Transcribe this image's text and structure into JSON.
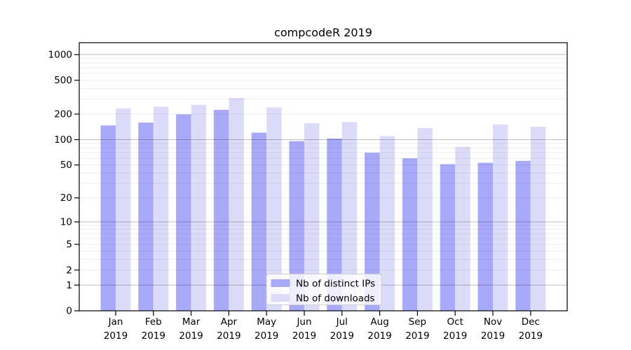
{
  "title": "compcodeR 2019",
  "chart_data": {
    "type": "bar",
    "title": "compcodeR 2019",
    "categories": [
      "Jan 2019",
      "Feb 2019",
      "Mar 2019",
      "Apr 2019",
      "May 2019",
      "Jun 2019",
      "Jul 2019",
      "Aug 2019",
      "Sep 2019",
      "Oct 2019",
      "Nov 2019",
      "Dec 2019"
    ],
    "series": [
      {
        "name": "Nb of distinct IPs",
        "color": "#a9a9fa",
        "values": [
          147,
          159,
          199,
          224,
          121,
          96,
          103,
          70,
          60,
          51,
          53,
          56
        ]
      },
      {
        "name": "Nb of downloads",
        "color": "#dcdcfa",
        "values": [
          233,
          244,
          257,
          309,
          240,
          156,
          161,
          110,
          137,
          82,
          151,
          142
        ]
      }
    ],
    "xlabel": "",
    "ylabel": "",
    "y_ticks": [
      0,
      1,
      2,
      5,
      10,
      20,
      50,
      100,
      200,
      500,
      1000
    ],
    "y_scale": "log10(value+1)",
    "ylim": [
      0,
      1365
    ],
    "grid": "on",
    "legend_position": "lower center"
  },
  "legend": {
    "items": [
      {
        "label": "Nb of distinct IPs",
        "color": "#a9a9fa"
      },
      {
        "label": "Nb of downloads",
        "color": "#dcdcfa"
      }
    ]
  },
  "colors": {
    "background": "#ffffff",
    "spine": "#000000",
    "major_grid": "rgba(0,0,0,0.25)",
    "minor_grid": "rgba(0,0,0,0.09)",
    "legend_border": "#cccccc",
    "legend_bg": "rgba(255,255,255,0.8)",
    "text": "#000000"
  }
}
